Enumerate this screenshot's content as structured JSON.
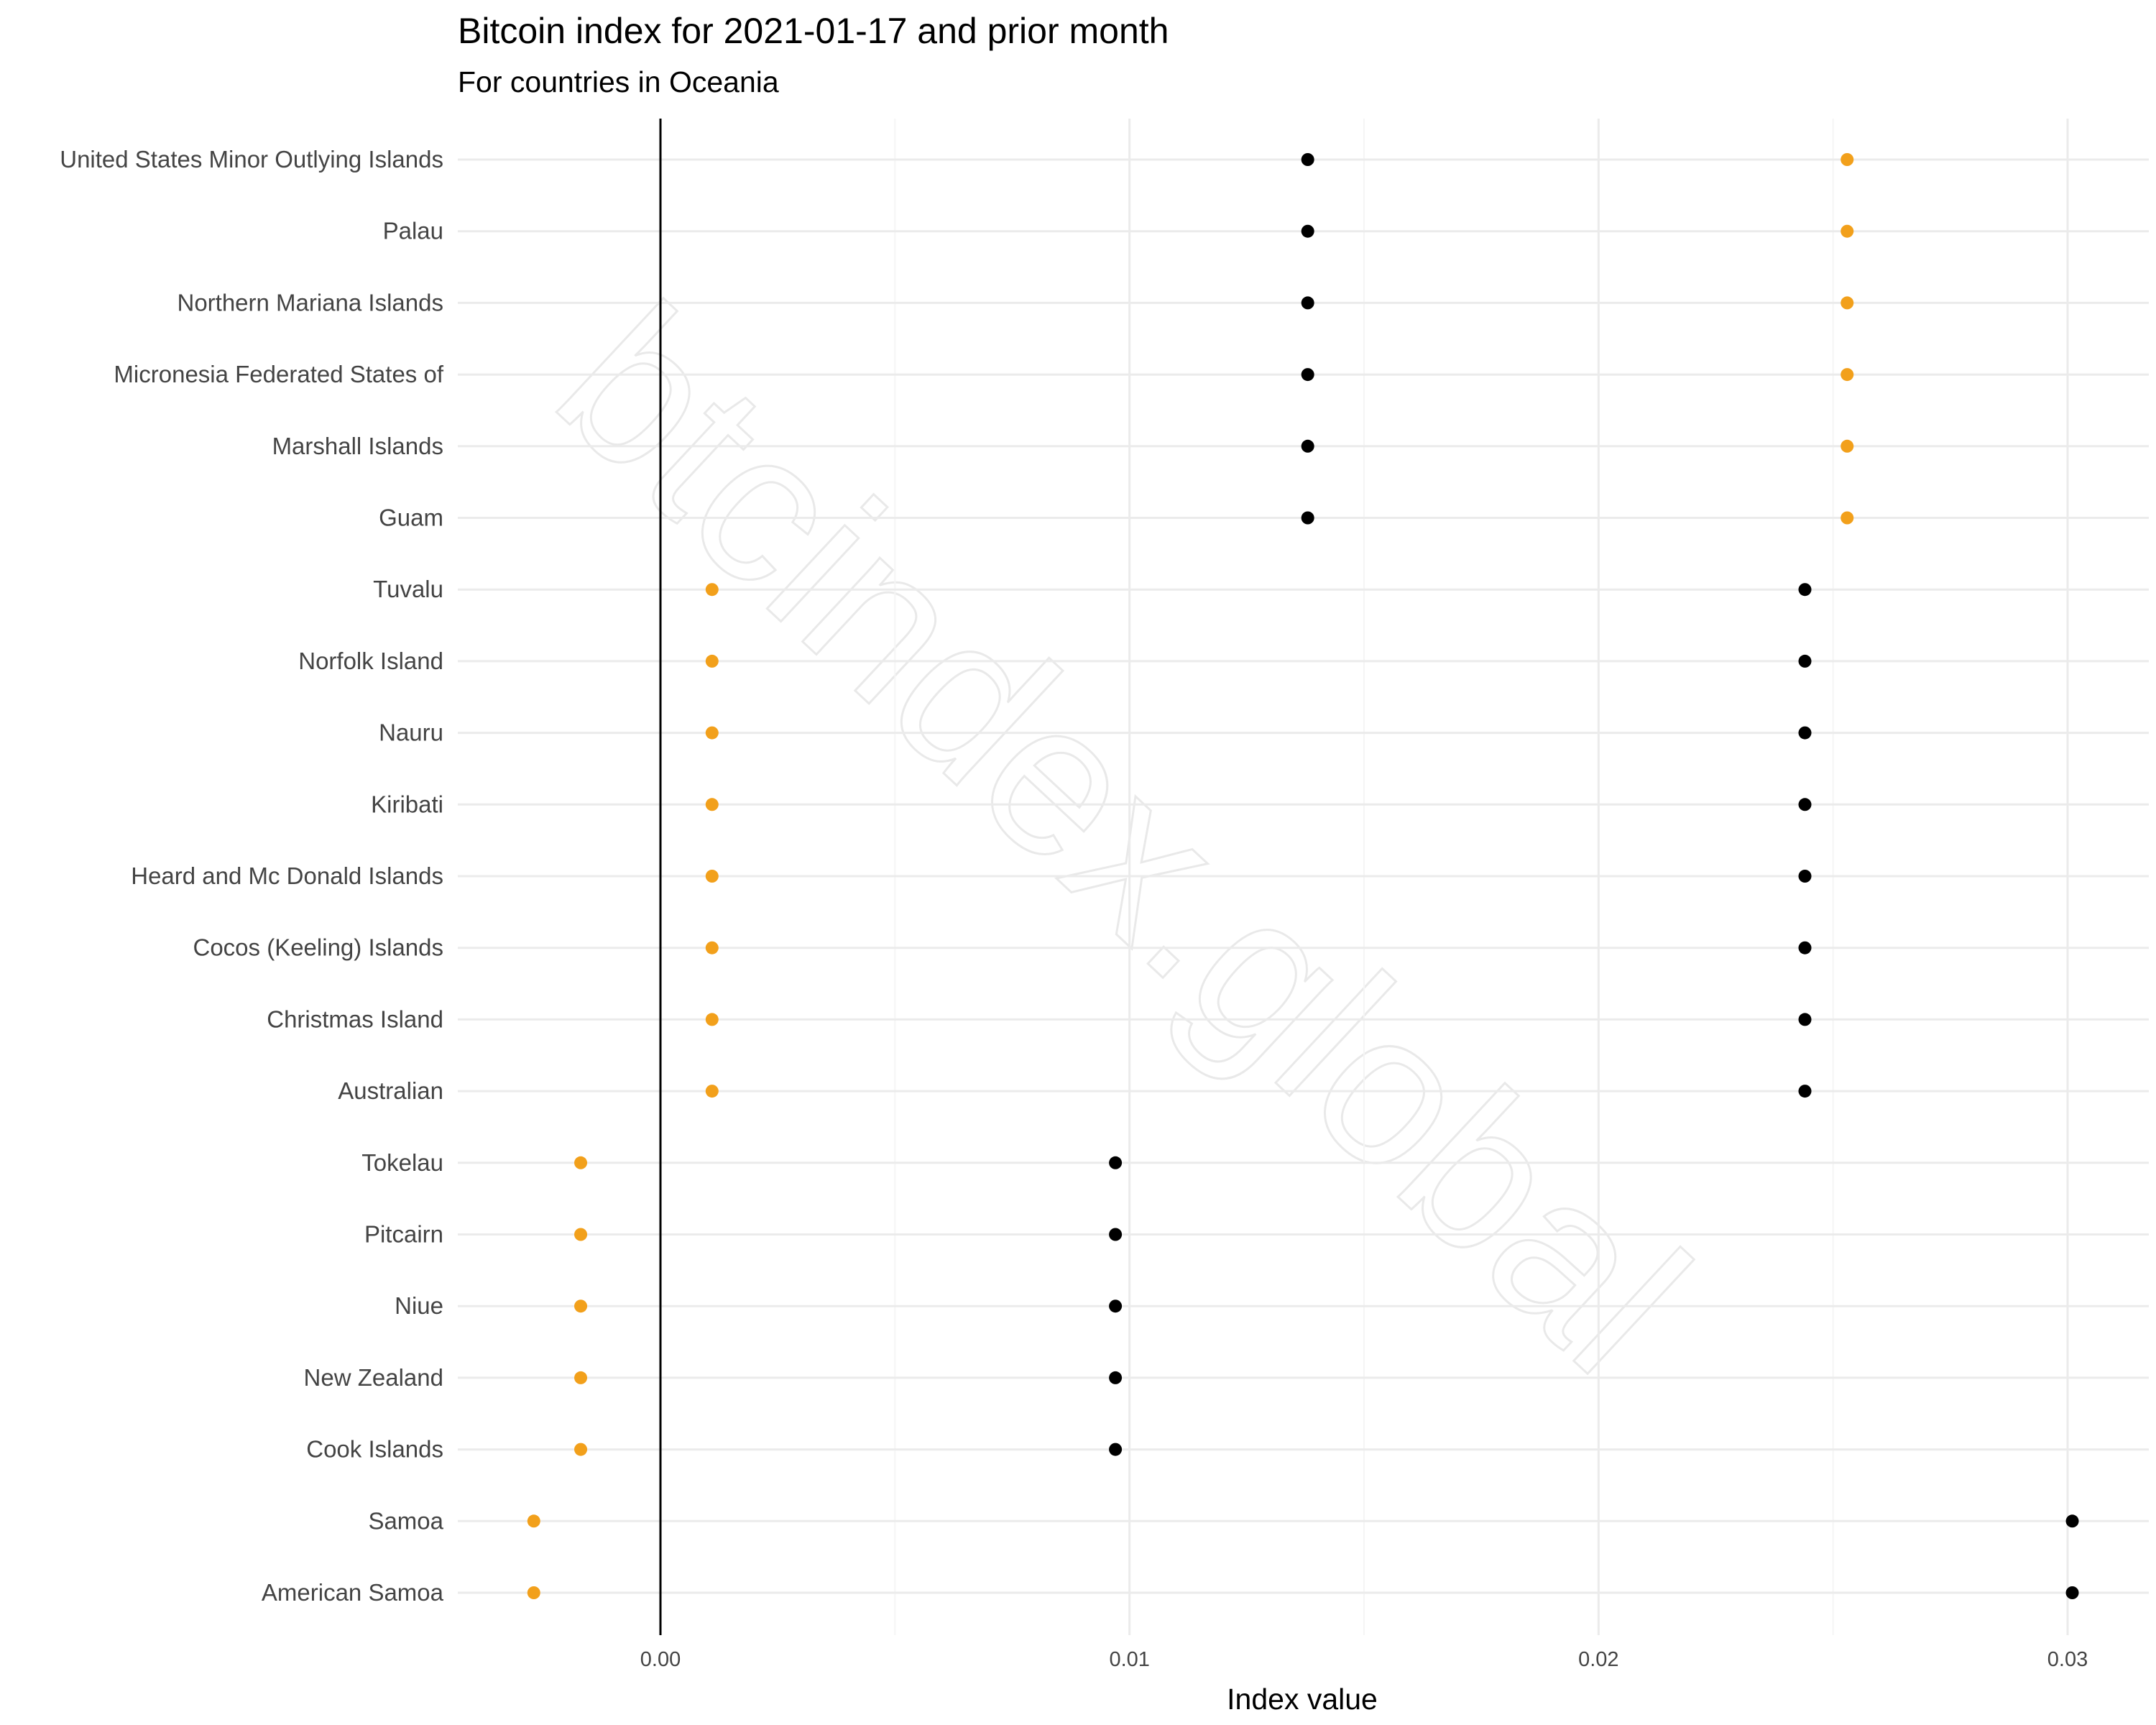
{
  "chart_data": {
    "type": "scatter",
    "title": "Bitcoin index for 2021-01-17 and prior month",
    "subtitle": "For countries in Oceania",
    "xlabel": "Index value",
    "ylabel": "",
    "xlim": [
      -0.0045,
      0.0315
    ],
    "x_ticks": [
      0.0,
      0.01,
      0.02,
      0.03
    ],
    "x_tick_labels": [
      "0.00",
      "0.01",
      "0.02",
      "0.03"
    ],
    "grid": true,
    "watermark": "btcindex.global",
    "colors": {
      "current": "#f2a01b",
      "prior": "#000000"
    },
    "categories": [
      "United States Minor Outlying Islands",
      "Palau",
      "Northern Mariana Islands",
      "Micronesia Federated States of",
      "Marshall Islands",
      "Guam",
      "Tuvalu",
      "Norfolk Island",
      "Nauru",
      "Kiribati",
      "Heard and Mc Donald Islands",
      "Cocos (Keeling) Islands",
      "Christmas Island",
      "Australian",
      "Tokelau",
      "Pitcairn",
      "Niue",
      "New Zealand",
      "Cook Islands",
      "Samoa",
      "American Samoa"
    ],
    "series": [
      {
        "color": "#f2a01b",
        "values": [
          0.0253,
          0.0253,
          0.0253,
          0.0253,
          0.0253,
          0.0253,
          0.0011,
          0.0011,
          0.0011,
          0.0011,
          0.0011,
          0.0011,
          0.0011,
          0.0011,
          -0.0017,
          -0.0017,
          -0.0017,
          -0.0017,
          -0.0017,
          -0.0027,
          -0.0027
        ]
      },
      {
        "color": "#000000",
        "values": [
          0.0138,
          0.0138,
          0.0138,
          0.0138,
          0.0138,
          0.0138,
          0.0244,
          0.0244,
          0.0244,
          0.0244,
          0.0244,
          0.0244,
          0.0244,
          0.0244,
          0.0097,
          0.0097,
          0.0097,
          0.0097,
          0.0097,
          0.0301,
          0.0301
        ]
      }
    ]
  }
}
